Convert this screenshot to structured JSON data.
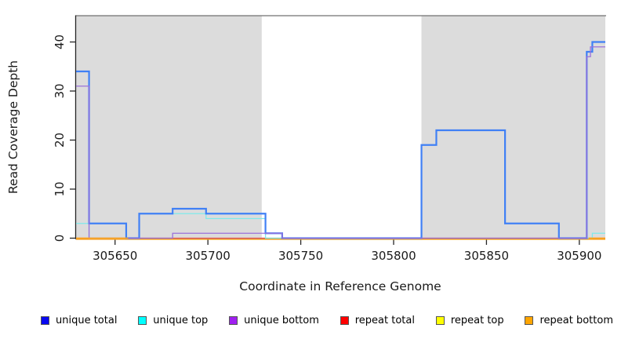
{
  "chart_data": {
    "type": "line",
    "subtype": "step-coverage",
    "xlabel": "Coordinate in Reference Genome",
    "ylabel": "Read Coverage Depth",
    "xlim": [
      305629,
      305914
    ],
    "ylim": [
      0,
      45
    ],
    "x_ticks": [
      305650,
      305700,
      305750,
      305800,
      305850,
      305900
    ],
    "y_ticks": [
      0,
      10,
      20,
      30,
      40
    ],
    "grid": false,
    "legend_position": "bottom",
    "background_color": "#ffffff",
    "shaded_regions": [
      {
        "x0": 305629,
        "x1": 305729,
        "color": "#dcdcdc"
      },
      {
        "x0": 305815,
        "x1": 305914,
        "color": "#dcdcdc"
      }
    ],
    "series": [
      {
        "name": "unique total",
        "line_color": "#4080f5",
        "width": 2.2,
        "steps": [
          [
            305629,
            34
          ],
          [
            305636,
            3
          ],
          [
            305656,
            0
          ],
          [
            305663,
            5
          ],
          [
            305681,
            6
          ],
          [
            305699,
            5
          ],
          [
            305731,
            1
          ],
          [
            305740,
            0
          ],
          [
            305815,
            19
          ],
          [
            305823,
            22
          ],
          [
            305860,
            3
          ],
          [
            305889,
            0
          ],
          [
            305904,
            38
          ],
          [
            305907,
            40
          ]
        ]
      },
      {
        "name": "unique top",
        "line_color": "#7fe9ea",
        "width": 1.3,
        "steps": [
          [
            305629,
            3
          ],
          [
            305636,
            0
          ],
          [
            305663,
            5
          ],
          [
            305699,
            4
          ],
          [
            305731,
            0
          ],
          [
            305815,
            19
          ],
          [
            305823,
            22
          ],
          [
            305860,
            3
          ],
          [
            305889,
            0
          ],
          [
            305907,
            1
          ]
        ]
      },
      {
        "name": "unique bottom",
        "line_color": "#9a70da",
        "width": 1.3,
        "steps": [
          [
            305629,
            31
          ],
          [
            305636,
            0
          ],
          [
            305681,
            1
          ],
          [
            305740,
            0
          ],
          [
            305904,
            37
          ],
          [
            305906,
            39
          ]
        ]
      },
      {
        "name": "repeat total",
        "line_color": "#e05570",
        "width": 1.2,
        "steps": [
          [
            305629,
            0
          ]
        ]
      },
      {
        "name": "repeat top",
        "line_color": "#f0e040",
        "width": 1.2,
        "steps": [
          [
            305629,
            0
          ]
        ]
      },
      {
        "name": "repeat bottom",
        "line_color": "#ffa51e",
        "width": 1.4,
        "steps": [
          [
            305629,
            0
          ]
        ],
        "visible_segments": [
          [
            305629,
            305657
          ],
          [
            305905,
            305914
          ]
        ]
      }
    ]
  },
  "legend": {
    "items": [
      {
        "label": "unique total",
        "color": "#0808f0"
      },
      {
        "label": "unique top",
        "color": "#00ffff"
      },
      {
        "label": "unique bottom",
        "color": "#a020f0"
      },
      {
        "label": "repeat total",
        "color": "#ff0000"
      },
      {
        "label": "repeat top",
        "color": "#ffff00"
      },
      {
        "label": "repeat bottom",
        "color": "#ffa500"
      }
    ]
  }
}
